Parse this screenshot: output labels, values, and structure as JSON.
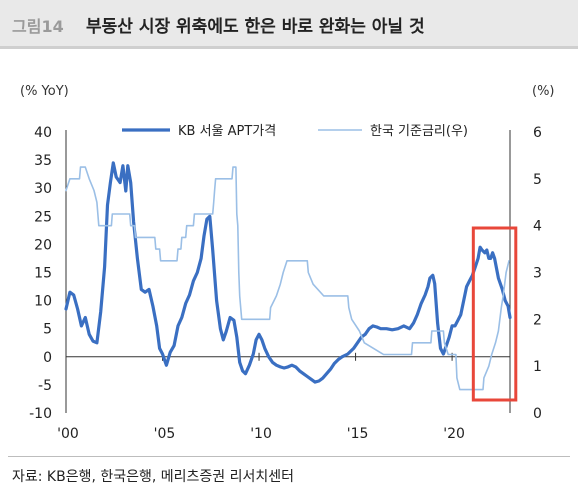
{
  "header": {
    "figure_number": "그림14",
    "title": "부동산 시장 위축에도 한은 바로 완화는 아닐 것"
  },
  "source": "자료: KB은행, 한국은행, 메리츠증권 리서치센터",
  "chart_data": {
    "type": "line",
    "left_unit": "(% YoY)",
    "right_unit": "(%)",
    "y_left": {
      "min": -10,
      "max": 40,
      "ticks": [
        -10,
        -5,
        0,
        5,
        10,
        15,
        20,
        25,
        30,
        35,
        40
      ]
    },
    "y_right": {
      "min": 0,
      "max": 6,
      "ticks": [
        0,
        1,
        2,
        3,
        4,
        5,
        6
      ]
    },
    "x_axis": {
      "min": 2000,
      "max": 2023,
      "ticks": [
        2000,
        2005,
        2010,
        2015,
        2020
      ],
      "tick_labels": [
        "'00",
        "'05",
        "'10",
        "'15",
        "'20"
      ]
    },
    "legend_position": "top",
    "grid": false,
    "highlight_box": {
      "x_start": 2021.1,
      "x_end": 2023.3,
      "color": "#e8473a"
    },
    "series": [
      {
        "name": "KB 서울 APT가격",
        "axis": "left",
        "color": "#3a6fc2",
        "points": [
          [
            2000.0,
            8.5
          ],
          [
            2000.2,
            11.5
          ],
          [
            2000.4,
            11.0
          ],
          [
            2000.6,
            8.5
          ],
          [
            2000.8,
            5.5
          ],
          [
            2001.0,
            7.0
          ],
          [
            2001.2,
            4.0
          ],
          [
            2001.4,
            2.8
          ],
          [
            2001.6,
            2.5
          ],
          [
            2001.8,
            8.0
          ],
          [
            2002.0,
            16.0
          ],
          [
            2002.15,
            27.0
          ],
          [
            2002.3,
            31.0
          ],
          [
            2002.45,
            34.5
          ],
          [
            2002.6,
            32.0
          ],
          [
            2002.8,
            31.0
          ],
          [
            2002.95,
            34.0
          ],
          [
            2003.1,
            29.5
          ],
          [
            2003.2,
            34.0
          ],
          [
            2003.35,
            31.0
          ],
          [
            2003.5,
            24.0
          ],
          [
            2003.7,
            17.5
          ],
          [
            2003.9,
            12.0
          ],
          [
            2004.1,
            11.5
          ],
          [
            2004.3,
            12.0
          ],
          [
            2004.5,
            9.0
          ],
          [
            2004.7,
            5.5
          ],
          [
            2004.85,
            1.5
          ],
          [
            2005.0,
            0.5
          ],
          [
            2005.2,
            -1.5
          ],
          [
            2005.4,
            0.8
          ],
          [
            2005.6,
            2.0
          ],
          [
            2005.8,
            5.5
          ],
          [
            2006.0,
            7.0
          ],
          [
            2006.2,
            9.5
          ],
          [
            2006.4,
            11.0
          ],
          [
            2006.6,
            13.5
          ],
          [
            2006.8,
            15.0
          ],
          [
            2007.0,
            17.5
          ],
          [
            2007.15,
            21.5
          ],
          [
            2007.3,
            24.5
          ],
          [
            2007.45,
            25.0
          ],
          [
            2007.6,
            19.0
          ],
          [
            2007.8,
            10.0
          ],
          [
            2008.0,
            5.0
          ],
          [
            2008.15,
            3.0
          ],
          [
            2008.3,
            4.5
          ],
          [
            2008.5,
            7.0
          ],
          [
            2008.7,
            6.5
          ],
          [
            2008.85,
            3.5
          ],
          [
            2009.0,
            -1.0
          ],
          [
            2009.15,
            -2.5
          ],
          [
            2009.3,
            -3.0
          ],
          [
            2009.5,
            -1.5
          ],
          [
            2009.7,
            0.5
          ],
          [
            2009.85,
            3.0
          ],
          [
            2010.0,
            4.0
          ],
          [
            2010.15,
            3.0
          ],
          [
            2010.3,
            1.5
          ],
          [
            2010.5,
            0.0
          ],
          [
            2010.7,
            -1.0
          ],
          [
            2010.9,
            -1.5
          ],
          [
            2011.1,
            -1.8
          ],
          [
            2011.3,
            -2.0
          ],
          [
            2011.5,
            -1.8
          ],
          [
            2011.7,
            -1.5
          ],
          [
            2011.9,
            -1.8
          ],
          [
            2012.1,
            -2.5
          ],
          [
            2012.3,
            -3.0
          ],
          [
            2012.5,
            -3.5
          ],
          [
            2012.7,
            -4.0
          ],
          [
            2012.9,
            -4.5
          ],
          [
            2013.1,
            -4.3
          ],
          [
            2013.3,
            -3.8
          ],
          [
            2013.5,
            -3.0
          ],
          [
            2013.7,
            -2.2
          ],
          [
            2013.9,
            -1.2
          ],
          [
            2014.1,
            -0.5
          ],
          [
            2014.3,
            0.0
          ],
          [
            2014.6,
            0.5
          ],
          [
            2014.9,
            1.5
          ],
          [
            2015.1,
            2.5
          ],
          [
            2015.3,
            3.5
          ],
          [
            2015.5,
            4.0
          ],
          [
            2015.7,
            5.0
          ],
          [
            2015.9,
            5.5
          ],
          [
            2016.1,
            5.3
          ],
          [
            2016.3,
            5.0
          ],
          [
            2016.6,
            5.0
          ],
          [
            2016.9,
            4.8
          ],
          [
            2017.2,
            5.0
          ],
          [
            2017.5,
            5.5
          ],
          [
            2017.8,
            5.0
          ],
          [
            2018.0,
            6.0
          ],
          [
            2018.2,
            7.5
          ],
          [
            2018.4,
            9.5
          ],
          [
            2018.6,
            11.0
          ],
          [
            2018.75,
            12.5
          ],
          [
            2018.85,
            14.0
          ],
          [
            2019.0,
            14.5
          ],
          [
            2019.1,
            13.0
          ],
          [
            2019.25,
            6.0
          ],
          [
            2019.4,
            1.5
          ],
          [
            2019.55,
            0.5
          ],
          [
            2019.7,
            2.0
          ],
          [
            2019.85,
            3.5
          ],
          [
            2020.0,
            5.5
          ],
          [
            2020.15,
            5.5
          ],
          [
            2020.3,
            6.5
          ],
          [
            2020.45,
            7.5
          ],
          [
            2020.6,
            10.0
          ],
          [
            2020.75,
            12.5
          ],
          [
            2020.9,
            13.5
          ],
          [
            2021.05,
            14.5
          ],
          [
            2021.2,
            16.0
          ],
          [
            2021.35,
            17.5
          ],
          [
            2021.45,
            19.5
          ],
          [
            2021.55,
            19.0
          ],
          [
            2021.7,
            18.5
          ],
          [
            2021.8,
            19.0
          ],
          [
            2021.9,
            17.5
          ],
          [
            2022.0,
            17.5
          ],
          [
            2022.1,
            18.5
          ],
          [
            2022.2,
            17.5
          ],
          [
            2022.4,
            14.0
          ],
          [
            2022.6,
            12.0
          ],
          [
            2022.75,
            10.0
          ],
          [
            2022.9,
            9.0
          ],
          [
            2023.0,
            7.0
          ]
        ]
      },
      {
        "name": "한국 기준금리(우)",
        "axis": "right",
        "color": "#9bbfe6",
        "points": [
          [
            2000.0,
            4.75
          ],
          [
            2000.2,
            5.0
          ],
          [
            2000.7,
            5.0
          ],
          [
            2000.75,
            5.25
          ],
          [
            2001.0,
            5.25
          ],
          [
            2001.2,
            5.0
          ],
          [
            2001.45,
            4.75
          ],
          [
            2001.6,
            4.5
          ],
          [
            2001.7,
            4.0
          ],
          [
            2001.8,
            4.0
          ],
          [
            2002.35,
            4.0
          ],
          [
            2002.4,
            4.25
          ],
          [
            2003.3,
            4.25
          ],
          [
            2003.35,
            4.0
          ],
          [
            2003.55,
            4.0
          ],
          [
            2003.6,
            3.75
          ],
          [
            2004.6,
            3.75
          ],
          [
            2004.65,
            3.5
          ],
          [
            2004.85,
            3.5
          ],
          [
            2004.9,
            3.25
          ],
          [
            2005.75,
            3.25
          ],
          [
            2005.8,
            3.5
          ],
          [
            2005.95,
            3.5
          ],
          [
            2006.0,
            3.75
          ],
          [
            2006.2,
            3.75
          ],
          [
            2006.25,
            4.0
          ],
          [
            2006.6,
            4.0
          ],
          [
            2006.65,
            4.25
          ],
          [
            2007.6,
            4.25
          ],
          [
            2007.65,
            4.5
          ],
          [
            2007.7,
            4.75
          ],
          [
            2007.75,
            5.0
          ],
          [
            2008.6,
            5.0
          ],
          [
            2008.65,
            5.25
          ],
          [
            2008.8,
            5.25
          ],
          [
            2008.85,
            4.25
          ],
          [
            2008.9,
            4.0
          ],
          [
            2008.95,
            3.0
          ],
          [
            2009.0,
            2.5
          ],
          [
            2009.1,
            2.0
          ],
          [
            2010.55,
            2.0
          ],
          [
            2010.6,
            2.25
          ],
          [
            2010.9,
            2.5
          ],
          [
            2011.1,
            2.75
          ],
          [
            2011.25,
            3.0
          ],
          [
            2011.45,
            3.25
          ],
          [
            2012.5,
            3.25
          ],
          [
            2012.55,
            3.0
          ],
          [
            2012.8,
            2.75
          ],
          [
            2013.35,
            2.5
          ],
          [
            2014.6,
            2.5
          ],
          [
            2014.65,
            2.25
          ],
          [
            2014.8,
            2.0
          ],
          [
            2015.2,
            1.75
          ],
          [
            2015.45,
            1.5
          ],
          [
            2016.45,
            1.25
          ],
          [
            2017.9,
            1.25
          ],
          [
            2017.95,
            1.5
          ],
          [
            2018.9,
            1.5
          ],
          [
            2018.95,
            1.75
          ],
          [
            2019.55,
            1.75
          ],
          [
            2019.6,
            1.5
          ],
          [
            2019.8,
            1.25
          ],
          [
            2020.2,
            1.25
          ],
          [
            2020.25,
            0.75
          ],
          [
            2020.4,
            0.5
          ],
          [
            2021.6,
            0.5
          ],
          [
            2021.65,
            0.75
          ],
          [
            2021.9,
            1.0
          ],
          [
            2022.05,
            1.25
          ],
          [
            2022.25,
            1.5
          ],
          [
            2022.4,
            1.75
          ],
          [
            2022.55,
            2.25
          ],
          [
            2022.65,
            2.5
          ],
          [
            2022.8,
            3.0
          ],
          [
            2022.95,
            3.25
          ]
        ]
      }
    ]
  }
}
